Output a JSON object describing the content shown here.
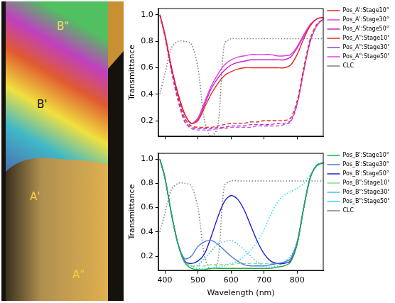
{
  "photo": {
    "labels": [
      "B\"",
      "B'",
      "A'",
      "A\""
    ]
  },
  "chart_data": [
    {
      "type": "line",
      "y_label": "Transmittance",
      "tick_labels": "y",
      "grid": false,
      "legend": "right",
      "xlim": [
        380,
        880
      ],
      "xticks": [
        400,
        500,
        600,
        700,
        800
      ],
      "ylim": [
        0.08,
        1.05
      ],
      "yticks": [
        0.2,
        0.4,
        0.6,
        0.8,
        {
          "value": 1,
          "label": "1.0"
        }
      ],
      "x": [
        385,
        400,
        420,
        440,
        460,
        480,
        500,
        520,
        540,
        560,
        580,
        600,
        620,
        640,
        660,
        680,
        700,
        720,
        740,
        760,
        780,
        800,
        820,
        840,
        860,
        880
      ],
      "series": [
        {
          "name": "Pos_A':Stage10°",
          "color": "#e8241c",
          "line_style": "solid",
          "values": [
            1.0,
            0.85,
            0.6,
            0.4,
            0.25,
            0.18,
            0.2,
            0.3,
            0.4,
            0.48,
            0.54,
            0.57,
            0.59,
            0.6,
            0.6,
            0.6,
            0.6,
            0.6,
            0.6,
            0.6,
            0.62,
            0.7,
            0.82,
            0.92,
            0.97,
            0.98
          ]
        },
        {
          "name": "Pos_A':Stage30°",
          "color": "#e040e0",
          "line_style": "solid",
          "values": [
            1.0,
            0.86,
            0.6,
            0.4,
            0.25,
            0.18,
            0.22,
            0.34,
            0.46,
            0.55,
            0.62,
            0.66,
            0.68,
            0.69,
            0.7,
            0.7,
            0.7,
            0.7,
            0.69,
            0.69,
            0.7,
            0.76,
            0.85,
            0.93,
            0.97,
            0.98
          ]
        },
        {
          "name": "Pos_A':Stage50°",
          "color": "#c820c8",
          "line_style": "solid",
          "values": [
            1.0,
            0.85,
            0.6,
            0.4,
            0.25,
            0.18,
            0.21,
            0.32,
            0.44,
            0.52,
            0.58,
            0.62,
            0.64,
            0.65,
            0.66,
            0.66,
            0.66,
            0.66,
            0.66,
            0.66,
            0.68,
            0.75,
            0.84,
            0.92,
            0.97,
            0.98
          ]
        },
        {
          "name": "Pos_A\":Stage10°",
          "color": "#e8241c",
          "line_style": "dashed",
          "values": [
            1.0,
            0.85,
            0.6,
            0.38,
            0.22,
            0.16,
            0.15,
            0.15,
            0.15,
            0.16,
            0.17,
            0.18,
            0.18,
            0.18,
            0.19,
            0.19,
            0.2,
            0.2,
            0.2,
            0.2,
            0.22,
            0.35,
            0.6,
            0.82,
            0.93,
            0.97
          ]
        },
        {
          "name": "Pos_A\":Stage30°",
          "color": "#9040e0",
          "line_style": "dashed",
          "values": [
            1.0,
            0.85,
            0.58,
            0.36,
            0.2,
            0.15,
            0.14,
            0.14,
            0.14,
            0.15,
            0.15,
            0.16,
            0.16,
            0.16,
            0.17,
            0.17,
            0.17,
            0.17,
            0.18,
            0.18,
            0.2,
            0.33,
            0.58,
            0.8,
            0.92,
            0.97
          ]
        },
        {
          "name": "Pos_A\":Stage50°",
          "color": "#e040e0",
          "line_style": "dashed",
          "values": [
            1.0,
            0.84,
            0.57,
            0.35,
            0.19,
            0.14,
            0.13,
            0.13,
            0.13,
            0.14,
            0.14,
            0.15,
            0.15,
            0.15,
            0.15,
            0.16,
            0.16,
            0.16,
            0.16,
            0.17,
            0.19,
            0.32,
            0.57,
            0.8,
            0.92,
            0.97
          ]
        },
        {
          "name": "CLC",
          "color": "#808080",
          "line_style": "dotted",
          "values": [
            0.4,
            0.55,
            0.75,
            0.8,
            0.8,
            0.78,
            0.6,
            0.2,
            0.08,
            0.15,
            0.78,
            0.82,
            0.82,
            0.82,
            0.82,
            0.82,
            0.82,
            0.82,
            0.82,
            0.82,
            0.82,
            0.82,
            0.82,
            0.82,
            0.82,
            0.82
          ]
        }
      ]
    },
    {
      "type": "line",
      "x_label": "Wavelength (nm)",
      "y_label": "Transmittance",
      "grid": false,
      "legend": "right",
      "xlim": [
        380,
        880
      ],
      "xticks": [
        400,
        500,
        600,
        700,
        800
      ],
      "ylim": [
        0.08,
        1.05
      ],
      "yticks": [
        0.2,
        0.4,
        0.6,
        0.8,
        {
          "value": 1,
          "label": "1.0"
        }
      ],
      "x": [
        385,
        400,
        420,
        440,
        460,
        480,
        500,
        520,
        540,
        560,
        580,
        600,
        620,
        640,
        660,
        680,
        700,
        720,
        740,
        760,
        780,
        800,
        820,
        840,
        860,
        880
      ],
      "series": [
        {
          "name": "Pos_B':Stage10°",
          "color": "#20b040",
          "line_style": "solid",
          "values": [
            1.0,
            0.85,
            0.55,
            0.3,
            0.15,
            0.1,
            0.09,
            0.09,
            0.1,
            0.1,
            0.1,
            0.1,
            0.1,
            0.1,
            0.1,
            0.1,
            0.1,
            0.1,
            0.11,
            0.12,
            0.15,
            0.3,
            0.6,
            0.85,
            0.95,
            0.97
          ]
        },
        {
          "name": "Pos_B':Stage30°",
          "color": "#4a78e8",
          "line_style": "solid",
          "values": [
            1.0,
            0.85,
            0.55,
            0.3,
            0.18,
            0.2,
            0.28,
            0.32,
            0.33,
            0.3,
            0.25,
            0.2,
            0.16,
            0.13,
            0.12,
            0.12,
            0.12,
            0.13,
            0.14,
            0.15,
            0.18,
            0.32,
            0.6,
            0.85,
            0.95,
            0.97
          ]
        },
        {
          "name": "Pos_B':Stage50°",
          "color": "#2020d0",
          "line_style": "solid",
          "values": [
            1.0,
            0.85,
            0.55,
            0.3,
            0.16,
            0.14,
            0.16,
            0.22,
            0.36,
            0.52,
            0.65,
            0.7,
            0.67,
            0.58,
            0.45,
            0.32,
            0.22,
            0.16,
            0.14,
            0.14,
            0.16,
            0.3,
            0.6,
            0.85,
            0.95,
            0.97
          ]
        },
        {
          "name": "Pos_B\":Stage10°",
          "color": "#80e080",
          "line_style": "dashed",
          "values": [
            1.0,
            0.85,
            0.55,
            0.3,
            0.16,
            0.12,
            0.12,
            0.12,
            0.13,
            0.13,
            0.13,
            0.13,
            0.14,
            0.14,
            0.14,
            0.14,
            0.14,
            0.14,
            0.14,
            0.15,
            0.17,
            0.3,
            0.6,
            0.85,
            0.95,
            0.97
          ]
        },
        {
          "name": "Pos_B\":Stage30°",
          "color": "#40c0e0",
          "line_style": "dotted",
          "values": [
            1.0,
            0.85,
            0.55,
            0.3,
            0.15,
            0.12,
            0.13,
            0.18,
            0.24,
            0.3,
            0.32,
            0.33,
            0.3,
            0.25,
            0.2,
            0.15,
            0.12,
            0.11,
            0.12,
            0.15,
            0.2,
            0.32,
            0.6,
            0.85,
            0.95,
            0.97
          ]
        },
        {
          "name": "Pos_B\":Stage50°",
          "color": "#30e0e0",
          "line_style": "dotted",
          "values": [
            1.0,
            0.85,
            0.55,
            0.3,
            0.15,
            0.12,
            0.1,
            0.1,
            0.1,
            0.11,
            0.12,
            0.14,
            0.16,
            0.2,
            0.25,
            0.32,
            0.42,
            0.54,
            0.64,
            0.7,
            0.73,
            0.76,
            0.8,
            0.87,
            0.94,
            0.97
          ]
        },
        {
          "name": "CLC",
          "color": "#808080",
          "line_style": "dotted",
          "values": [
            0.4,
            0.55,
            0.75,
            0.8,
            0.8,
            0.78,
            0.6,
            0.2,
            0.08,
            0.15,
            0.78,
            0.82,
            0.82,
            0.82,
            0.82,
            0.82,
            0.82,
            0.82,
            0.82,
            0.82,
            0.82,
            0.82,
            0.82,
            0.82,
            0.82,
            0.82
          ]
        }
      ]
    }
  ]
}
